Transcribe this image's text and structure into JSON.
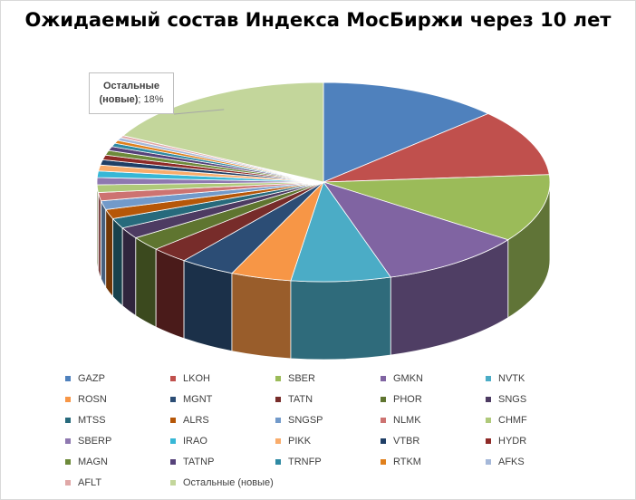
{
  "chart_data": {
    "type": "pie",
    "title": "Ожидаемый состав Индекса МосБиржи через 10 лет",
    "categories": [
      "GAZP",
      "LKOH",
      "SBER",
      "GMKN",
      "NVTK",
      "ROSN",
      "MGNT",
      "TATN",
      "PHOR",
      "SNGS",
      "MTSS",
      "ALRS",
      "SNGSP",
      "NLMK",
      "CHMF",
      "SBERP",
      "IRAO",
      "PIKK",
      "VTBR",
      "HYDR",
      "MAGN",
      "TATNP",
      "TRNFP",
      "RTKM",
      "AFKS",
      "AFLT",
      "Остальные (новые)"
    ],
    "values": [
      13.5,
      11.3,
      11.5,
      10.8,
      7.4,
      4.5,
      4.1,
      2.8,
      2.4,
      1.9,
      1.7,
      1.6,
      1.5,
      1.4,
      1.3,
      1.2,
      1.1,
      1.0,
      0.9,
      0.8,
      0.8,
      0.7,
      0.6,
      0.5,
      0.5,
      0.4,
      18
    ],
    "colors": [
      "#4f81bd",
      "#c0504d",
      "#9bbb59",
      "#8064a2",
      "#4bacc6",
      "#f79646",
      "#2c4d75",
      "#772c2a",
      "#5f7530",
      "#4d3b62",
      "#276a7c",
      "#b65708",
      "#729aca",
      "#cd7371",
      "#afc97a",
      "#8e78b0",
      "#37b7d6",
      "#f9ac6b",
      "#1f3f66",
      "#8e2a27",
      "#6d8a3a",
      "#56427a",
      "#2f8aa3",
      "#e0801c",
      "#a5b8d9",
      "#e0a8a7",
      "#c3d69b"
    ],
    "callout": {
      "name": "Остальные (новые)",
      "name_line1": "Остальные",
      "name_line2": "(новые)",
      "value": "18%"
    },
    "legend_position": "bottom"
  }
}
